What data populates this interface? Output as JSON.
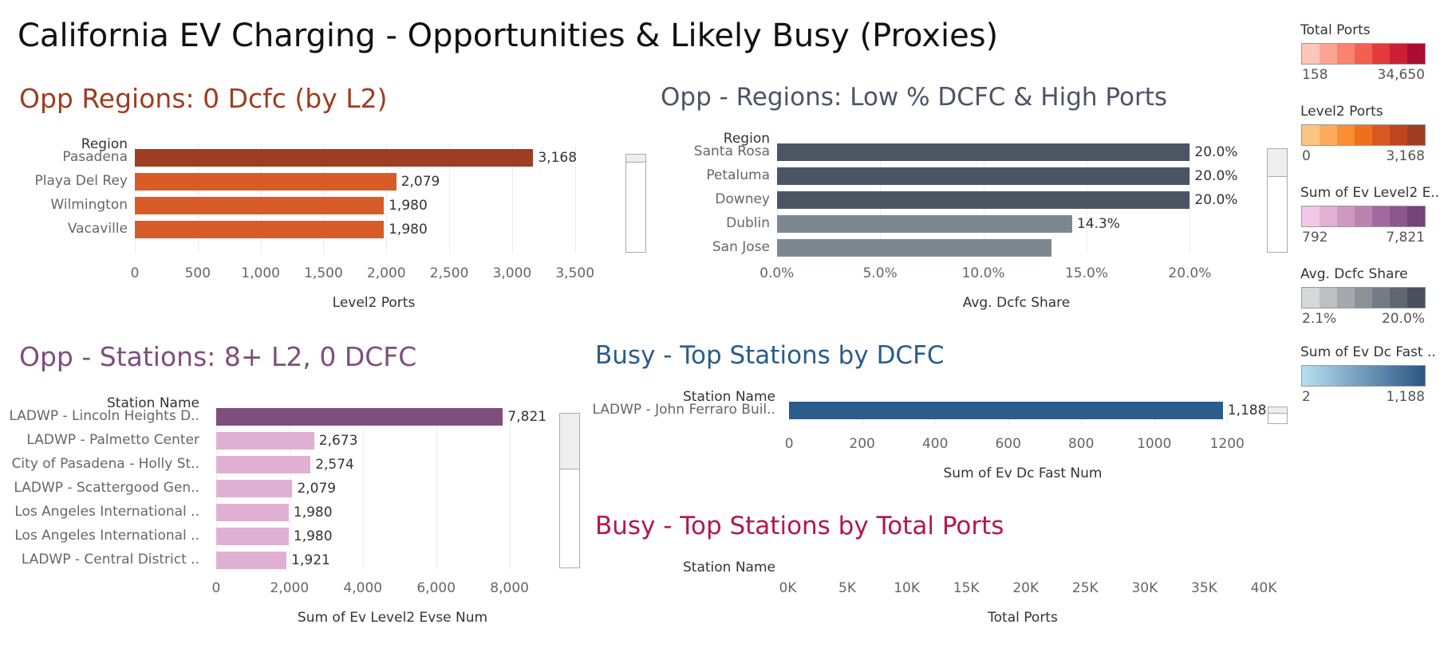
{
  "title": "California EV Charging - Opportunities & Likely Busy (Proxies)",
  "colors": {
    "opp_l2": "#d95b27",
    "opp_l2_top": "#9e3d22",
    "opp_dcfc_dark": "#4c5563",
    "opp_dcfc_mid": "#7d878f",
    "stations_top": "#7e4e7e",
    "stations_other": "#e0b0d4",
    "busy_dcfc": "#2b5c8a"
  },
  "panels": {
    "opp_regions_l2": {
      "title": "Opp Regions: 0 Dcfc (by L2)",
      "title_color": "#9e3d22",
      "row_header": "Region",
      "chart_data": {
        "type": "bar",
        "orientation": "horizontal",
        "categories": [
          "Pasadena",
          "Playa Del Rey",
          "Wilmington",
          "Vacaville"
        ],
        "values": [
          3168,
          2079,
          1980,
          1980
        ],
        "value_labels": [
          "3,168",
          "2,079",
          "1,980",
          "1,980"
        ],
        "xlabel": "Level2 Ports",
        "xlim": [
          0,
          3800
        ],
        "ticks": [
          0,
          500,
          1000,
          1500,
          2000,
          2500,
          3000,
          3500
        ],
        "tick_labels": [
          "0",
          "500",
          "1,000",
          "1,500",
          "2,000",
          "2,500",
          "3,000",
          "3,500"
        ],
        "grid": true
      }
    },
    "opp_regions_dcfc": {
      "title": "Opp - Regions: Low % DCFC & High Ports",
      "title_color": "#4c5563",
      "row_header": "Region",
      "chart_data": {
        "type": "bar",
        "orientation": "horizontal",
        "categories": [
          "Santa Rosa",
          "Petaluma",
          "Downey",
          "Dublin",
          "San Jose"
        ],
        "values": [
          20.0,
          20.0,
          20.0,
          14.3,
          13.3
        ],
        "value_labels": [
          "20.0%",
          "20.0%",
          "20.0%",
          "14.3%",
          ""
        ],
        "xlabel": "Avg. Dcfc Share",
        "xlim": [
          -0.3,
          23.5
        ],
        "ticks": [
          0,
          5,
          10,
          15,
          20
        ],
        "tick_labels": [
          "0.0%",
          "5.0%",
          "10.0%",
          "15.0%",
          "20.0%"
        ],
        "grid": true
      }
    },
    "opp_stations": {
      "title": "Opp - Stations: 8+ L2, 0 DCFC",
      "title_color": "#7e4e7e",
      "row_header": "Station Name",
      "chart_data": {
        "type": "bar",
        "orientation": "horizontal",
        "categories": [
          "LADWP - Lincoln Heights D..",
          "LADWP - Palmetto Center",
          "City of Pasadena - Holly St..",
          "LADWP - Scattergood Gen..",
          "Los Angeles International ..",
          "Los Angeles International ..",
          "LADWP - Central District .."
        ],
        "values": [
          7821,
          2673,
          2574,
          2079,
          1980,
          1980,
          1921
        ],
        "value_labels": [
          "7,821",
          "2,673",
          "2,574",
          "2,079",
          "1,980",
          "1,980",
          "1,921"
        ],
        "xlabel": "Sum of Ev Level2 Evse Num",
        "xlim": [
          -280,
          9900
        ],
        "ticks": [
          0,
          2000,
          4000,
          6000,
          8000
        ],
        "tick_labels": [
          "0",
          "2,000",
          "4,000",
          "6,000",
          "8,000"
        ],
        "grid": true
      }
    },
    "busy_dcfc": {
      "title": "Busy - Top Stations by DCFC",
      "title_color": "#2b5c8a",
      "row_header": "Station Name",
      "chart_data": {
        "type": "bar",
        "orientation": "horizontal",
        "categories": [
          "LADWP - John Ferraro Buil.."
        ],
        "values": [
          1188
        ],
        "value_labels": [
          "1,188"
        ],
        "xlabel": "Sum of Ev Dc Fast Num",
        "xlim": [
          -20,
          1300
        ],
        "ticks": [
          0,
          200,
          400,
          600,
          800,
          1000,
          1200
        ],
        "tick_labels": [
          "0",
          "200",
          "400",
          "600",
          "800",
          "1000",
          "1200"
        ],
        "grid": true
      }
    },
    "busy_total": {
      "title": "Busy - Top Stations by Total Ports",
      "title_color": "#b5174b",
      "row_header": "Station Name",
      "chart_data": {
        "type": "bar",
        "orientation": "horizontal",
        "categories": [],
        "values": [],
        "xlabel": "Total Ports",
        "xlim": [
          -500,
          40000
        ],
        "ticks": [
          0,
          5000,
          10000,
          15000,
          20000,
          25000,
          30000,
          35000,
          40000
        ],
        "tick_labels": [
          "0K",
          "5K",
          "10K",
          "15K",
          "20K",
          "25K",
          "30K",
          "35K",
          "40K"
        ],
        "grid": true
      }
    }
  },
  "legends": [
    {
      "title": "Total Ports",
      "min": "158",
      "max": "34,650",
      "colors": [
        "#fcc6bb",
        "#fba494",
        "#f8836f",
        "#f26050",
        "#e43a3c",
        "#cb1f36",
        "#ab0d33"
      ]
    },
    {
      "title": "Level2 Ports",
      "min": "0",
      "max": "3,168",
      "colors": [
        "#fdc384",
        "#fcaa5b",
        "#f88e34",
        "#ed701e",
        "#d9581f",
        "#bd4620",
        "#9e3d22"
      ]
    },
    {
      "title": "Sum of Ev Level2 E..",
      "min": "792",
      "max": "7,821",
      "colors": [
        "#f2c8e6",
        "#e2b0d5",
        "#cf98c3",
        "#ba81b1",
        "#a2699f",
        "#8c568e",
        "#744378"
      ]
    },
    {
      "title": "Avg. Dcfc Share",
      "min": "2.1%",
      "max": "20.0%",
      "colors": [
        "#d6d8d9",
        "#bcc0c3",
        "#a3a9ad",
        "#8a9298",
        "#737c84",
        "#5d6671",
        "#49505e"
      ]
    },
    {
      "title": "Sum of Ev Dc Fast ..",
      "min": "2",
      "max": "1,188",
      "gradient": [
        "#b8def2",
        "#2a5783"
      ]
    }
  ]
}
